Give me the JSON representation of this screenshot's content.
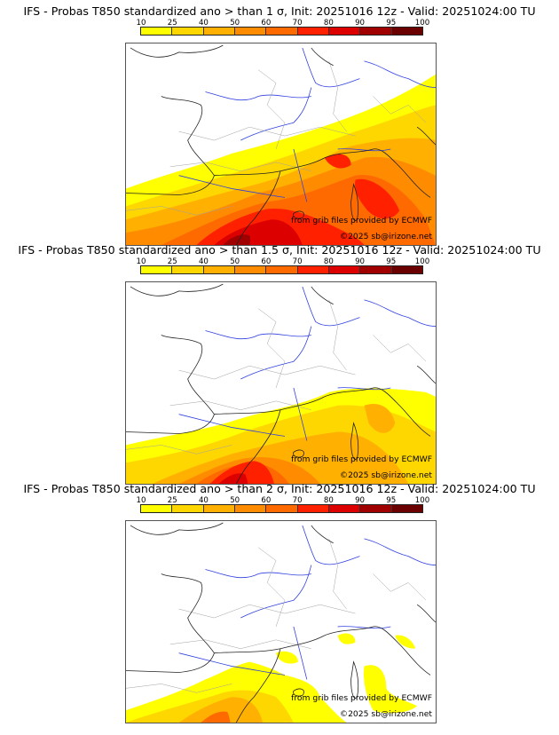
{
  "colorbar": {
    "labels": [
      "10",
      "25",
      "40",
      "50",
      "60",
      "70",
      "80",
      "90",
      "95",
      "100"
    ],
    "colors": [
      "#ffff00",
      "#ffd700",
      "#ffb000",
      "#ff8c00",
      "#ff6a00",
      "#ff2000",
      "#dd0000",
      "#a00000",
      "#6a0000"
    ]
  },
  "map_colors": {
    "river": "#3040e0",
    "border": "#a0a0a0",
    "coast": "#222222"
  },
  "panels": [
    {
      "title": "IFS - Probas T850  standardized ano > than 1 σ, Init: 20251016 12z - Valid: 20251024:00 TU",
      "credit_source": "from grib files provided by ECMWF",
      "credit_copyright": "©2025 sb@irizone.net"
    },
    {
      "title": "IFS - Probas T850  standardized ano > than 1.5 σ, Init: 20251016 12z - Valid: 20251024:00 TU",
      "credit_source": "from grib files provided by ECMWF",
      "credit_copyright": "©2025 sb@irizone.net"
    },
    {
      "title": "IFS - Probas T850  standardized ano > than 2 σ, Init: 20251016 12z - Valid: 20251024:00 TU",
      "credit_source": "from grib files provided by ECMWF",
      "credit_copyright": "©2025 sb@irizone.net"
    }
  ]
}
